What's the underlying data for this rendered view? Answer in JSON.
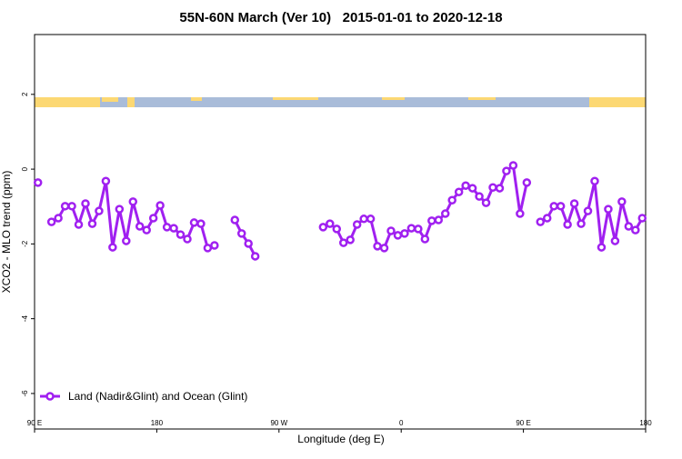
{
  "chart_data": {
    "type": "line",
    "title": "55N-60N March (Ver 10)   2015-01-01 to 2020-12-18",
    "xlabel": "Longitude (deg E)",
    "ylabel": "XCO2 - MLO trend (ppm)",
    "x": [
      92.5,
      97.5,
      102.5,
      107.5,
      112.5,
      117.5,
      122.5,
      127.5,
      132.5,
      137.5,
      142.5,
      147.5,
      152.5,
      157.5,
      162.5,
      167.5,
      172.5,
      177.5,
      182.5,
      187.5,
      192.5,
      197.5,
      202.5,
      207.5,
      212.5,
      217.5,
      222.5,
      227.5,
      232.5,
      237.5,
      242.5,
      247.5,
      252.5,
      257.5,
      262.5,
      267.5,
      272.5,
      277.5,
      282.5,
      287.5,
      292.5,
      297.5,
      302.5,
      307.5,
      312.5,
      317.5,
      322.5,
      327.5,
      332.5,
      337.5,
      342.5,
      347.5,
      352.5,
      357.5,
      362.5,
      367.5,
      372.5,
      377.5,
      382.5,
      387.5,
      392.5,
      397.5,
      402.5,
      407.5,
      412.5,
      417.5,
      422.5,
      427.5,
      432.5,
      437.5,
      442.5,
      447.5,
      452.5,
      457.5,
      462.5,
      467.5,
      472.5,
      477.5,
      482.5,
      487.5,
      492.5,
      497.5,
      502.5,
      507.5,
      512.5,
      517.5,
      522.5,
      527.5,
      532.5,
      537.5
    ],
    "series": [
      {
        "name": "Land (Nadir&Glint) and Ocean (Glint)",
        "color": "#a020f0",
        "values": [
          -0.36,
          null,
          -1.41,
          -1.31,
          -0.99,
          -0.99,
          -1.48,
          -0.92,
          -1.46,
          -1.12,
          -0.32,
          -2.09,
          -1.07,
          -1.92,
          -0.87,
          -1.53,
          -1.63,
          -1.31,
          -0.97,
          -1.55,
          -1.58,
          -1.75,
          -1.87,
          -1.43,
          -1.46,
          -2.11,
          -2.04,
          null,
          null,
          -1.36,
          -1.72,
          -1.99,
          -2.33,
          null,
          null,
          null,
          null,
          null,
          null,
          null,
          null,
          null,
          -1.55,
          -1.46,
          -1.6,
          -1.97,
          -1.89,
          -1.48,
          -1.33,
          -1.33,
          -2.06,
          -2.11,
          -1.65,
          -1.77,
          -1.72,
          -1.58,
          -1.6,
          -1.87,
          -1.38,
          -1.36,
          -1.19,
          -0.83,
          -0.61,
          -0.44,
          -0.51,
          -0.73,
          -0.9,
          -0.49,
          -0.51,
          -0.05,
          0.1,
          -1.19,
          -0.36,
          null,
          -1.41,
          -1.31,
          -0.99,
          -0.99,
          -1.48,
          -0.92,
          -1.46,
          -1.12,
          -0.32,
          -2.09,
          -1.07,
          -1.92,
          -0.87,
          -1.53,
          -1.63,
          -1.31
        ]
      }
    ],
    "xlim": [
      90,
      540
    ],
    "xticks": [
      {
        "value": 90,
        "label": "90 E"
      },
      180,
      {
        "value": 270,
        "label": "90 W"
      },
      {
        "value": 360,
        "label": "0"
      },
      {
        "value": 450,
        "label": "90 E"
      },
      {
        "value": 540,
        "label": "180"
      }
    ],
    "ylim": [
      -6.95,
      3.6
    ],
    "yticks": [
      2,
      0,
      -2,
      -4,
      -6
    ],
    "legend": "bottom-left"
  }
}
